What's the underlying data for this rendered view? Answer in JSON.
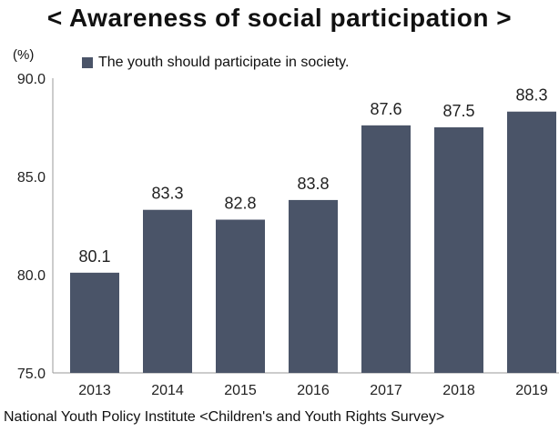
{
  "chart_data": {
    "type": "bar",
    "title": "< Awareness of social participation >",
    "unit_label": "(%)",
    "categories": [
      "2013",
      "2014",
      "2015",
      "2016",
      "2017",
      "2018",
      "2019"
    ],
    "series": [
      {
        "name": "The youth should participate in society.",
        "values": [
          80.1,
          83.3,
          82.8,
          83.8,
          87.6,
          87.5,
          88.3
        ],
        "color": "#4a5468"
      }
    ],
    "ylim": [
      75.0,
      90.0
    ],
    "yticks": [
      "75.0",
      "80.0",
      "85.0",
      "90.0"
    ],
    "grid": false,
    "legend_position": "top-left"
  },
  "source": "National Youth Policy Institute <Children's and Youth Rights Survey>"
}
